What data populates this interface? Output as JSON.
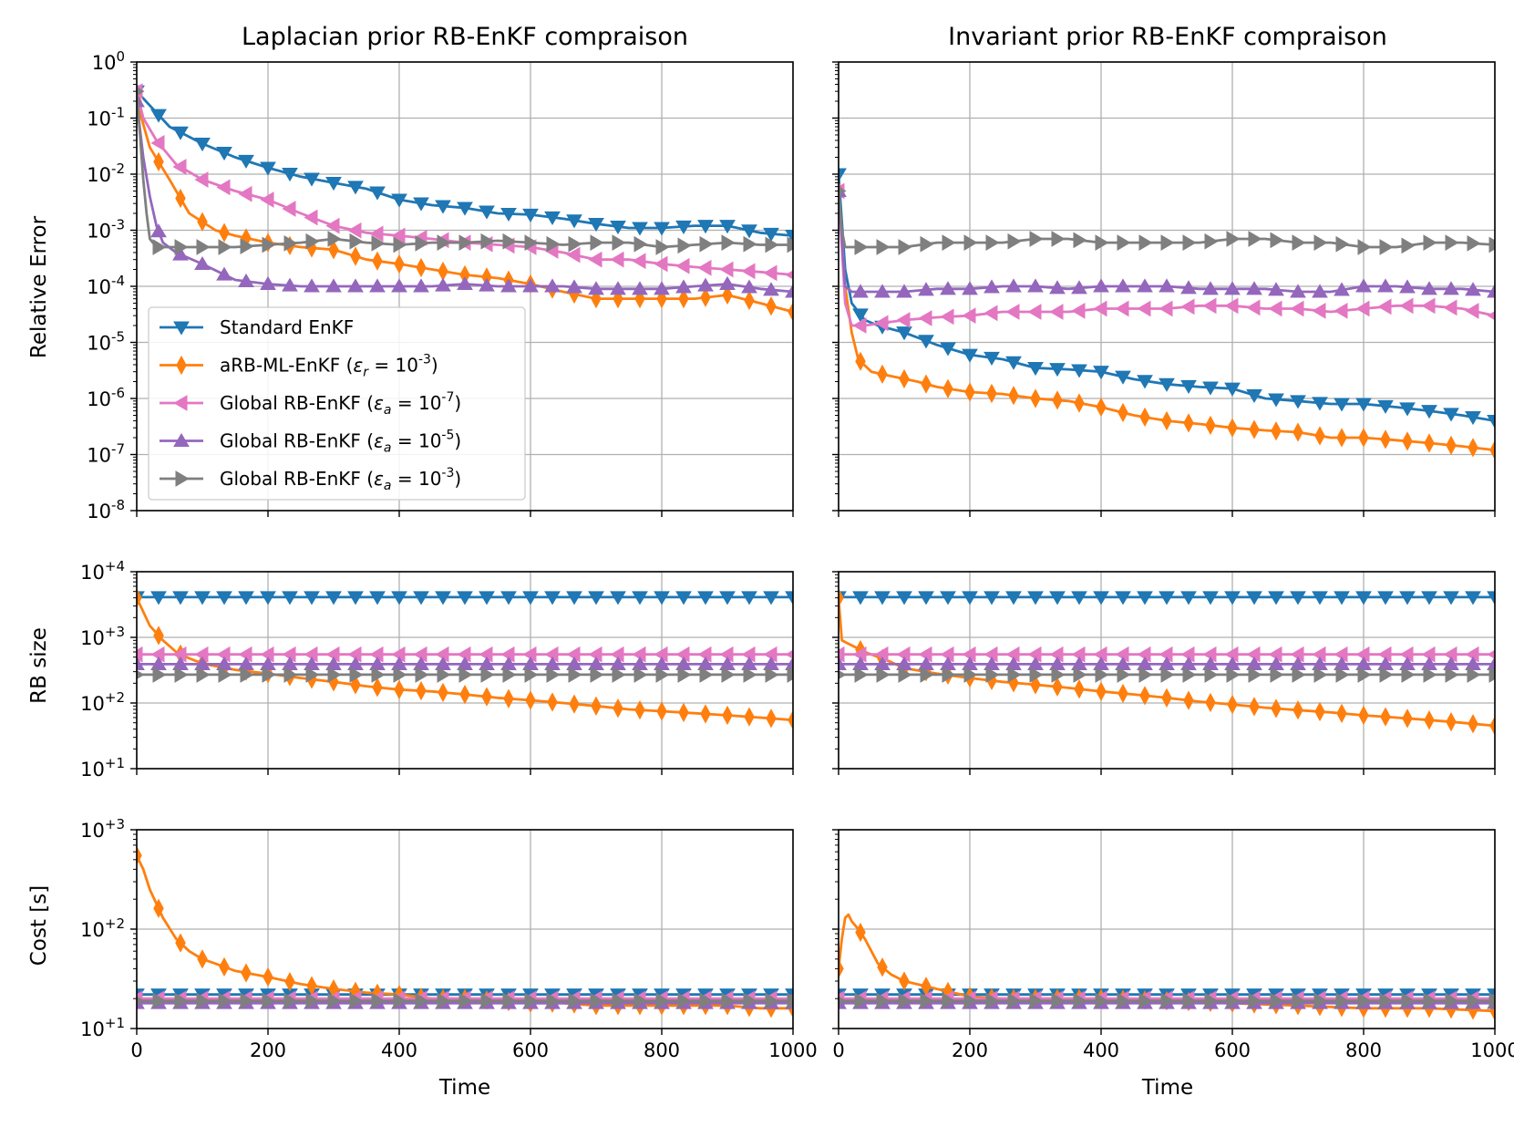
{
  "figure": {
    "titles": [
      "Laplacian prior RB-EnKF compraison",
      "Invariant prior RB-EnKF compraison"
    ],
    "xlabel": "Time",
    "row_ylabels": [
      "Relative Error",
      "RB size",
      "Cost   [s]"
    ]
  },
  "legend": [
    {
      "series": "standard",
      "label": "Standard EnKF",
      "color": "#1f77b4",
      "marker": "triangle-down"
    },
    {
      "series": "arb_ml",
      "label": "aRB-ML-EnKF (ε_r = 10^-3)",
      "color": "#ff7f0e",
      "marker": "diamond"
    },
    {
      "series": "global_7",
      "label": "Global RB-EnKF (ε_a = 10^-7)",
      "color": "#e377c2",
      "marker": "triangle-left"
    },
    {
      "series": "global_5",
      "label": "Global RB-EnKF (ε_a = 10^-5)",
      "color": "#9467bd",
      "marker": "triangle-up"
    },
    {
      "series": "global_3",
      "label": "Global RB-EnKF (ε_a = 10^-3)",
      "color": "#7f7f7f",
      "marker": "triangle-right"
    }
  ],
  "chart_data": [
    {
      "type": "line",
      "title": "Laplacian prior RB-EnKF compraison",
      "xlabel": "",
      "ylabel": "Relative Error",
      "yscale": "log",
      "xlim": [
        0,
        1000
      ],
      "ylim": [
        1e-08,
        1
      ],
      "xticks": [
        0,
        200,
        400,
        600,
        800,
        1000
      ],
      "ytick_labels": [
        "10^-8",
        "10^-7",
        "10^-6",
        "10^-5",
        "10^-4",
        "10^-3",
        "10^-2",
        "10^-1",
        "10^0"
      ],
      "grid": true,
      "legend_position": "lower-left",
      "series": [
        {
          "id": "standard",
          "x": [
            0,
            50,
            100,
            150,
            200,
            250,
            300,
            350,
            400,
            450,
            500,
            550,
            600,
            650,
            700,
            750,
            800,
            850,
            900,
            950,
            1000
          ],
          "y": [
            0.3,
            0.07,
            0.035,
            0.02,
            0.013,
            0.009,
            0.007,
            0.0055,
            0.0035,
            0.0028,
            0.0025,
            0.002,
            0.0019,
            0.0016,
            0.0013,
            0.0011,
            0.0011,
            0.0012,
            0.0012,
            0.0009,
            0.0008
          ]
        },
        {
          "id": "arb_ml",
          "x": [
            0,
            20,
            50,
            80,
            120,
            150,
            200,
            250,
            300,
            350,
            400,
            450,
            500,
            550,
            600,
            650,
            700,
            750,
            800,
            850,
            900,
            950,
            1000
          ],
          "y": [
            0.2,
            0.03,
            0.008,
            0.002,
            0.001,
            0.0008,
            0.0006,
            0.0005,
            0.00045,
            0.0003,
            0.00025,
            0.0002,
            0.00016,
            0.00014,
            0.00011,
            8e-05,
            6e-05,
            6e-05,
            6e-05,
            6e-05,
            7e-05,
            5e-05,
            3.5e-05
          ]
        },
        {
          "id": "global_7",
          "x": [
            0,
            10,
            30,
            60,
            100,
            150,
            200,
            250,
            300,
            350,
            400,
            450,
            500,
            550,
            600,
            650,
            700,
            750,
            800,
            850,
            900,
            950,
            1000
          ],
          "y": [
            0.3,
            0.1,
            0.04,
            0.015,
            0.008,
            0.005,
            0.0035,
            0.002,
            0.0012,
            0.0009,
            0.0008,
            0.0007,
            0.0006,
            0.00055,
            0.0005,
            0.0004,
            0.0003,
            0.0003,
            0.00025,
            0.00022,
            0.0002,
            0.00018,
            0.00016
          ]
        },
        {
          "id": "global_5",
          "x": [
            0,
            10,
            20,
            30,
            40,
            60,
            100,
            150,
            200,
            250,
            300,
            350,
            400,
            450,
            500,
            550,
            600,
            650,
            700,
            750,
            800,
            850,
            900,
            950,
            1000
          ],
          "y": [
            0.2,
            0.02,
            0.004,
            0.0012,
            0.0006,
            0.0004,
            0.00025,
            0.00013,
            0.00011,
            0.0001,
            0.0001,
            0.0001,
            0.0001,
            0.0001,
            0.00011,
            0.0001,
            0.0001,
            0.0001,
            9e-05,
            9e-05,
            9e-05,
            0.0001,
            0.00011,
            9e-05,
            8e-05
          ]
        },
        {
          "id": "global_3",
          "x": [
            0,
            5,
            10,
            15,
            20,
            30,
            50,
            100,
            150,
            200,
            250,
            300,
            350,
            400,
            450,
            500,
            550,
            600,
            650,
            700,
            750,
            800,
            850,
            900,
            950,
            1000
          ],
          "y": [
            0.3,
            0.05,
            0.008,
            0.002,
            0.0007,
            0.0005,
            0.0005,
            0.0005,
            0.0005,
            0.00055,
            0.0006,
            0.0007,
            0.0006,
            0.00055,
            0.0006,
            0.0006,
            0.00065,
            0.0006,
            0.00055,
            0.0006,
            0.0006,
            0.0005,
            0.00055,
            0.0006,
            0.00055,
            0.00055
          ]
        }
      ]
    },
    {
      "type": "line",
      "title": "Invariant prior RB-EnKF compraison",
      "xlabel": "",
      "ylabel": "",
      "yscale": "log",
      "xlim": [
        0,
        1000
      ],
      "ylim": [
        1e-08,
        1
      ],
      "xticks": [
        0,
        200,
        400,
        600,
        800,
        1000
      ],
      "grid": true,
      "series": [
        {
          "id": "standard",
          "x": [
            0,
            10,
            20,
            40,
            60,
            100,
            150,
            200,
            250,
            300,
            350,
            400,
            450,
            500,
            550,
            600,
            650,
            700,
            750,
            800,
            850,
            900,
            950,
            1000
          ],
          "y": [
            0.01,
            0.0002,
            5e-05,
            2.5e-05,
            2e-05,
            1.5e-05,
            9e-06,
            6e-06,
            5e-06,
            3.5e-06,
            3.3e-06,
            3e-06,
            2.2e-06,
            1.8e-06,
            1.6e-06,
            1.5e-06,
            1e-06,
            9e-07,
            8e-07,
            8e-07,
            7e-07,
            6e-07,
            5e-07,
            4e-07
          ]
        },
        {
          "id": "arb_ml",
          "x": [
            0,
            10,
            20,
            30,
            50,
            80,
            120,
            150,
            200,
            250,
            300,
            350,
            400,
            450,
            500,
            550,
            600,
            650,
            700,
            750,
            800,
            850,
            900,
            950,
            1000
          ],
          "y": [
            0.005,
            0.0001,
            1.5e-05,
            5e-06,
            3e-06,
            2.5e-06,
            2e-06,
            1.6e-06,
            1.3e-06,
            1.2e-06,
            1e-06,
            9e-07,
            7e-07,
            5e-07,
            4e-07,
            3.5e-07,
            3e-07,
            2.7e-07,
            2.5e-07,
            2e-07,
            2e-07,
            1.8e-07,
            1.6e-07,
            1.4e-07,
            1.2e-07
          ]
        },
        {
          "id": "global_7",
          "x": [
            0,
            10,
            20,
            40,
            100,
            150,
            200,
            250,
            300,
            350,
            400,
            450,
            500,
            550,
            600,
            650,
            700,
            750,
            800,
            850,
            900,
            950,
            1000
          ],
          "y": [
            0.005,
            5e-05,
            2e-05,
            2e-05,
            2.5e-05,
            2.8e-05,
            3e-05,
            3.5e-05,
            3.5e-05,
            3.5e-05,
            4e-05,
            4e-05,
            4e-05,
            4.5e-05,
            4.5e-05,
            4e-05,
            4e-05,
            3.5e-05,
            4e-05,
            4.5e-05,
            4.5e-05,
            4e-05,
            3e-05
          ]
        },
        {
          "id": "global_5",
          "x": [
            0,
            10,
            20,
            40,
            100,
            150,
            200,
            250,
            300,
            350,
            400,
            450,
            500,
            550,
            600,
            650,
            700,
            750,
            800,
            850,
            900,
            950,
            1000
          ],
          "y": [
            0.005,
            0.0001,
            8e-05,
            8e-05,
            8e-05,
            9e-05,
            9e-05,
            0.0001,
            0.0001,
            9e-05,
            0.0001,
            0.0001,
            0.0001,
            9e-05,
            9e-05,
            9e-05,
            8e-05,
            8e-05,
            0.0001,
            0.0001,
            9e-05,
            9e-05,
            8e-05
          ]
        },
        {
          "id": "global_3",
          "x": [
            0,
            5,
            10,
            20,
            40,
            100,
            150,
            200,
            250,
            300,
            350,
            400,
            450,
            500,
            550,
            600,
            650,
            700,
            750,
            800,
            850,
            900,
            950,
            1000
          ],
          "y": [
            0.005,
            0.001,
            0.0005,
            0.0005,
            0.0005,
            0.0005,
            0.0006,
            0.0006,
            0.0006,
            0.0007,
            0.0007,
            0.0006,
            0.0006,
            0.0006,
            0.0006,
            0.0007,
            0.0007,
            0.0006,
            0.0006,
            0.0005,
            0.0005,
            0.0006,
            0.0006,
            0.00055
          ]
        }
      ]
    },
    {
      "type": "line",
      "title": "",
      "xlabel": "",
      "ylabel": "RB size",
      "yscale": "log",
      "xlim": [
        0,
        1000
      ],
      "ylim": [
        10,
        10000
      ],
      "xticks": [
        0,
        200,
        400,
        600,
        800,
        1000
      ],
      "ytick_labels": [
        "10^+1",
        "10^+2",
        "10^+3",
        "10^+4"
      ],
      "grid": true,
      "series": [
        {
          "id": "standard",
          "x": [
            0,
            1000
          ],
          "y": [
            4096,
            4096
          ]
        },
        {
          "id": "arb_ml",
          "x": [
            0,
            20,
            40,
            60,
            80,
            100,
            150,
            200,
            250,
            300,
            350,
            400,
            450,
            500,
            550,
            600,
            650,
            700,
            750,
            800,
            850,
            900,
            950,
            1000
          ],
          "y": [
            4000,
            1500,
            900,
            600,
            480,
            400,
            320,
            280,
            240,
            210,
            180,
            160,
            150,
            135,
            120,
            110,
            100,
            90,
            80,
            75,
            70,
            65,
            60,
            55
          ]
        },
        {
          "id": "global_7",
          "x": [
            0,
            1000
          ],
          "y": [
            550,
            550
          ]
        },
        {
          "id": "global_5",
          "x": [
            0,
            1000
          ],
          "y": [
            390,
            390
          ]
        },
        {
          "id": "global_3",
          "x": [
            0,
            1000
          ],
          "y": [
            270,
            270
          ]
        }
      ]
    },
    {
      "type": "line",
      "title": "",
      "xlabel": "",
      "ylabel": "",
      "yscale": "log",
      "xlim": [
        0,
        1000
      ],
      "ylim": [
        10,
        10000
      ],
      "xticks": [
        0,
        200,
        400,
        600,
        800,
        1000
      ],
      "grid": true,
      "series": [
        {
          "id": "standard",
          "x": [
            0,
            1000
          ],
          "y": [
            4096,
            4096
          ]
        },
        {
          "id": "arb_ml",
          "x": [
            0,
            5,
            15,
            40,
            80,
            100,
            150,
            200,
            250,
            300,
            350,
            400,
            450,
            500,
            550,
            600,
            650,
            700,
            750,
            800,
            850,
            900,
            950,
            1000
          ],
          "y": [
            4000,
            900,
            800,
            600,
            420,
            340,
            280,
            240,
            210,
            190,
            170,
            150,
            135,
            120,
            105,
            95,
            85,
            78,
            72,
            65,
            60,
            55,
            50,
            45
          ]
        },
        {
          "id": "global_7",
          "x": [
            0,
            1000
          ],
          "y": [
            550,
            550
          ]
        },
        {
          "id": "global_5",
          "x": [
            0,
            1000
          ],
          "y": [
            390,
            390
          ]
        },
        {
          "id": "global_3",
          "x": [
            0,
            1000
          ],
          "y": [
            270,
            270
          ]
        }
      ]
    },
    {
      "type": "line",
      "title": "",
      "xlabel": "Time",
      "ylabel": "Cost   [s]",
      "yscale": "log",
      "xlim": [
        0,
        1000
      ],
      "ylim": [
        10,
        1000
      ],
      "xticks": [
        0,
        200,
        400,
        600,
        800,
        1000
      ],
      "ytick_labels": [
        "10^+1",
        "10^+2",
        "10^+3"
      ],
      "grid": true,
      "series": [
        {
          "id": "standard",
          "x": [
            0,
            1000
          ],
          "y": [
            22,
            22
          ]
        },
        {
          "id": "arb_ml",
          "x": [
            0,
            10,
            20,
            40,
            60,
            80,
            100,
            120,
            150,
            200,
            250,
            300,
            350,
            400,
            450,
            500,
            550,
            600,
            650,
            700,
            750,
            800,
            850,
            900,
            950,
            1000
          ],
          "y": [
            550,
            400,
            250,
            130,
            80,
            60,
            50,
            45,
            38,
            33,
            28,
            25,
            23,
            22,
            20,
            20,
            19,
            18,
            18,
            17,
            17,
            17,
            17,
            17,
            16,
            16
          ]
        },
        {
          "id": "global_7",
          "x": [
            0,
            1000
          ],
          "y": [
            20,
            20
          ]
        },
        {
          "id": "global_5",
          "x": [
            0,
            1000
          ],
          "y": [
            18,
            18
          ]
        },
        {
          "id": "global_3",
          "x": [
            0,
            1000
          ],
          "y": [
            19,
            19
          ]
        }
      ]
    },
    {
      "type": "line",
      "title": "",
      "xlabel": "Time",
      "ylabel": "",
      "yscale": "log",
      "xlim": [
        0,
        1000
      ],
      "ylim": [
        10,
        1000
      ],
      "xticks": [
        0,
        200,
        400,
        600,
        800,
        1000
      ],
      "grid": true,
      "series": [
        {
          "id": "standard",
          "x": [
            0,
            1000
          ],
          "y": [
            22,
            22
          ]
        },
        {
          "id": "arb_ml",
          "x": [
            0,
            5,
            10,
            15,
            20,
            30,
            40,
            50,
            60,
            80,
            100,
            150,
            200,
            250,
            300,
            400,
            500,
            600,
            700,
            800,
            900,
            1000
          ],
          "y": [
            40,
            80,
            130,
            140,
            120,
            100,
            80,
            60,
            45,
            35,
            30,
            25,
            21,
            20,
            20,
            20,
            19,
            18,
            17,
            16,
            16,
            15
          ]
        },
        {
          "id": "global_7",
          "x": [
            0,
            1000
          ],
          "y": [
            20,
            20
          ]
        },
        {
          "id": "global_5",
          "x": [
            0,
            1000
          ],
          "y": [
            18,
            18
          ]
        },
        {
          "id": "global_3",
          "x": [
            0,
            1000
          ],
          "y": [
            19,
            19
          ]
        }
      ]
    }
  ]
}
